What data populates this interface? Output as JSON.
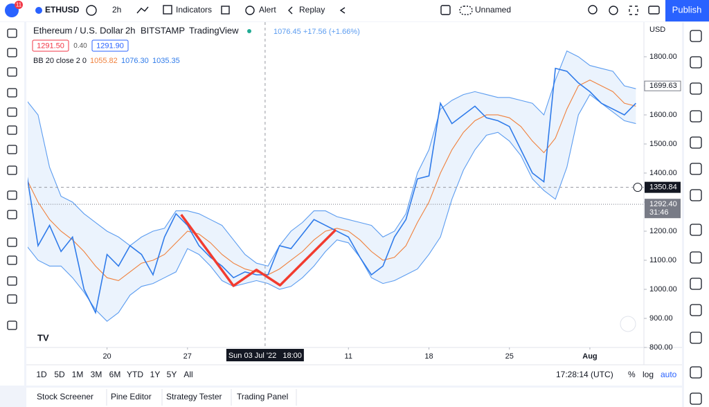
{
  "toolbar": {
    "badge": "11",
    "symbol": "ETHUSD",
    "interval": "2h",
    "indicators": "Indicators",
    "alert": "Alert",
    "replay": "Replay",
    "layout": "Unnamed",
    "publish": "Publish"
  },
  "legend": {
    "name": "Ethereum / U.S. Dollar",
    "interval": "2h",
    "exchange": "BITSTAMP",
    "source": "TradingView",
    "readout": "1076.45 +17.56 (+1.66%)",
    "bid": "1291.50",
    "spread": "0.40",
    "ask": "1291.90",
    "bb_label": "BB 20 close 2 0",
    "bb_basis": "1055.82",
    "bb_upper": "1076.30",
    "bb_lower": "1035.35"
  },
  "chart_data": {
    "type": "line",
    "currency": "USD",
    "x": [
      -7,
      -6,
      -5,
      -4,
      -3,
      -2,
      -1,
      0,
      1,
      2,
      3,
      4,
      5,
      6,
      7,
      8,
      9,
      10,
      11,
      12,
      13,
      14,
      15,
      16,
      17,
      18,
      19,
      20,
      21,
      22,
      23,
      24,
      25,
      26,
      27,
      28,
      29,
      30,
      31,
      32,
      33,
      34,
      35,
      36,
      37,
      38,
      39,
      40,
      41,
      42,
      43,
      44,
      45,
      46
    ],
    "series": [
      {
        "name": "Upper",
        "color": "#5b9cf0",
        "values": [
          1650,
          1600,
          1420,
          1320,
          1300,
          1260,
          1230,
          1200,
          1180,
          1150,
          1180,
          1200,
          1210,
          1270,
          1270,
          1260,
          1240,
          1220,
          1170,
          1120,
          1090,
          1080,
          1150,
          1200,
          1230,
          1270,
          1270,
          1250,
          1240,
          1230,
          1220,
          1180,
          1200,
          1260,
          1400,
          1480,
          1620,
          1650,
          1670,
          1680,
          1670,
          1660,
          1660,
          1650,
          1640,
          1600,
          1720,
          1820,
          1800,
          1770,
          1760,
          1750,
          1700,
          1690
        ]
      },
      {
        "name": "Lower",
        "color": "#5b9cf0",
        "values": [
          1150,
          1100,
          1080,
          1080,
          1040,
          990,
          930,
          890,
          920,
          980,
          1010,
          1020,
          1040,
          1060,
          1140,
          1120,
          1080,
          1030,
          1010,
          1020,
          1030,
          1020,
          1000,
          1010,
          1040,
          1080,
          1130,
          1170,
          1160,
          1110,
          1040,
          1020,
          1030,
          1050,
          1070,
          1120,
          1180,
          1310,
          1410,
          1480,
          1530,
          1540,
          1510,
          1460,
          1380,
          1340,
          1310,
          1420,
          1600,
          1670,
          1640,
          1610,
          1580,
          1570
        ]
      },
      {
        "name": "Basis",
        "color": "#f0803c",
        "values": [
          1380,
          1300,
          1240,
          1200,
          1170,
          1130,
          1080,
          1040,
          1030,
          1060,
          1090,
          1100,
          1120,
          1160,
          1200,
          1190,
          1160,
          1120,
          1090,
          1070,
          1060,
          1050,
          1070,
          1100,
          1130,
          1170,
          1200,
          1210,
          1200,
          1170,
          1130,
          1100,
          1110,
          1150,
          1230,
          1300,
          1400,
          1480,
          1540,
          1580,
          1600,
          1600,
          1590,
          1560,
          1510,
          1470,
          1520,
          1620,
          1700,
          1720,
          1700,
          1680,
          1640,
          1630
        ]
      },
      {
        "name": "ETHUSD",
        "color": "#2f7bea",
        "values": [
          1400,
          1150,
          1220,
          1130,
          1180,
          1000,
          920,
          1120,
          1080,
          1150,
          1120,
          1050,
          1180,
          1260,
          1220,
          1150,
          1110,
          1080,
          1040,
          1060,
          1050,
          1050,
          1150,
          1140,
          1190,
          1240,
          1220,
          1200,
          1180,
          1110,
          1050,
          1080,
          1180,
          1240,
          1380,
          1390,
          1640,
          1570,
          1600,
          1630,
          1590,
          1580,
          1560,
          1480,
          1400,
          1370,
          1760,
          1750,
          1710,
          1680,
          1640,
          1620,
          1600,
          1640
        ]
      }
    ],
    "drawing": {
      "color": "#f23b2f",
      "x": [
        6.45,
        11.0,
        13.0,
        15.05,
        19.9
      ],
      "values": [
        1257,
        1012,
        1067,
        1014,
        1205
      ]
    },
    "xlim": [
      -6.9,
      46.7
    ],
    "ylim": [
      800,
      1919
    ],
    "xticks": [
      {
        "value": 0,
        "label": "20"
      },
      {
        "value": 7,
        "label": "27"
      },
      {
        "value": 21,
        "label": "11"
      },
      {
        "value": 28,
        "label": "18"
      },
      {
        "value": 35,
        "label": "25"
      },
      {
        "value": 42,
        "label": "Aug"
      }
    ],
    "yticks": [
      {
        "value": 800,
        "label": "800.00"
      },
      {
        "value": 900,
        "label": "900.00"
      },
      {
        "value": 1000,
        "label": "1000.00"
      },
      {
        "value": 1100,
        "label": "1100.00"
      },
      {
        "value": 1200,
        "label": "1200.00"
      },
      {
        "value": 1300,
        "label": "1300.00"
      },
      {
        "value": 1400,
        "label": "1400.00"
      },
      {
        "value": 1500,
        "label": "1500.00"
      },
      {
        "value": 1600,
        "label": "1600.00"
      },
      {
        "value": 1700,
        "label": "1700.00"
      },
      {
        "value": 1800,
        "label": "1800.00"
      }
    ],
    "crosshair": {
      "x": 13.75,
      "x_label": "Sun 03 Jul '22   18:00",
      "y": 1350.84,
      "y_label": "1350.84"
    },
    "last_price": {
      "value": 1699.63,
      "label": "1699.63"
    },
    "bid_line": {
      "value": 1292.4,
      "label": "1292.40",
      "countdown": "31:46"
    }
  },
  "bottom_bar": {
    "ranges": [
      "1D",
      "5D",
      "1M",
      "3M",
      "6M",
      "YTD",
      "1Y",
      "5Y",
      "All"
    ],
    "clock": "17:28:14 (UTC)",
    "percent": "%",
    "log": "log",
    "auto": "auto"
  },
  "tabs": [
    "Stock Screener",
    "Pine Editor",
    "Strategy Tester",
    "Trading Panel"
  ]
}
